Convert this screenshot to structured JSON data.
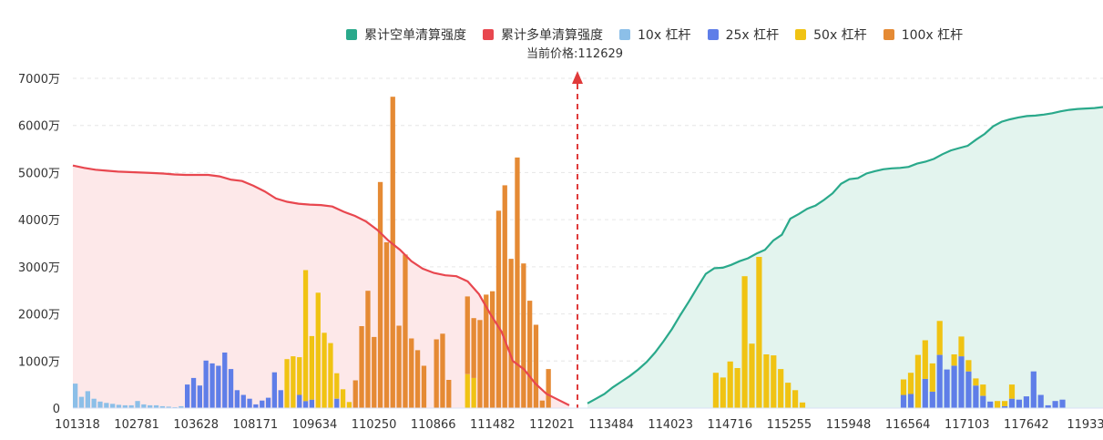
{
  "legend": {
    "items": [
      {
        "label": "累计空单清算强度",
        "color": "#2aa98b"
      },
      {
        "label": "累计多单清算强度",
        "color": "#e8474f"
      },
      {
        "label": "10x 杠杆",
        "color": "#8cbfe8"
      },
      {
        "label": "25x 杠杆",
        "color": "#5f7ee8"
      },
      {
        "label": "50x 杠杆",
        "color": "#f0c313"
      },
      {
        "label": "100x 杠杆",
        "color": "#e58a34"
      }
    ]
  },
  "current_price": {
    "label": "当前价格:112629",
    "value": 112629,
    "color": "#e8474f"
  },
  "chart_data": {
    "type": "bar",
    "stacked": true,
    "ylim": [
      0,
      7000
    ],
    "y_unit": "万",
    "ytick_labels": [
      "0",
      "1000万",
      "2000万",
      "3000万",
      "4000万",
      "5000万",
      "6000万",
      "7000万"
    ],
    "ytick_values": [
      0,
      1000,
      2000,
      3000,
      4000,
      5000,
      6000,
      7000
    ],
    "xtick_labels": [
      "101318",
      "102781",
      "103628",
      "108171",
      "109634",
      "110250",
      "110866",
      "111482",
      "112021",
      "113484",
      "114023",
      "114716",
      "115255",
      "115948",
      "116564",
      "117103",
      "117642",
      "11933"
    ],
    "gap_after_index": 78,
    "series": [
      {
        "name": "10x 杠杆",
        "color": "#8cbfe8",
        "values": [
          520,
          240,
          360,
          200,
          140,
          110,
          90,
          70,
          60,
          60,
          150,
          80,
          60,
          60,
          40,
          30,
          20,
          40,
          0,
          0,
          0,
          0,
          0,
          0,
          0,
          0,
          0,
          0,
          0,
          0,
          0,
          0,
          0,
          0,
          0,
          0,
          0,
          0,
          0,
          0,
          0,
          0,
          0,
          0,
          0,
          0,
          0,
          0,
          0,
          0,
          0,
          0,
          0,
          0,
          0,
          0,
          0,
          0,
          0,
          0,
          0,
          0,
          0,
          0,
          0,
          0,
          0,
          0,
          0,
          0,
          0,
          0,
          0,
          0,
          0,
          0,
          0,
          0,
          0,
          0,
          0,
          0,
          0,
          0,
          0,
          0,
          0,
          0,
          0,
          0,
          0,
          0,
          0,
          0,
          0,
          0,
          0,
          0,
          0,
          0,
          0,
          0,
          0,
          0,
          0,
          0,
          0,
          0,
          0,
          0,
          0,
          0,
          0,
          0,
          0,
          0,
          0,
          0,
          0,
          0,
          0,
          0,
          0,
          0,
          0,
          0,
          0,
          0,
          0,
          0,
          0,
          0,
          0,
          0,
          0,
          0,
          0,
          0,
          0,
          0,
          0,
          0,
          0,
          0,
          0,
          0,
          0,
          0,
          0,
          0,
          0,
          0,
          0,
          0,
          0,
          0,
          0,
          0,
          0
        ]
      },
      {
        "name": "25x 杠杆",
        "color": "#5f7ee8",
        "values": [
          0,
          0,
          0,
          0,
          0,
          0,
          0,
          0,
          0,
          0,
          0,
          0,
          0,
          0,
          0,
          0,
          0,
          0,
          500,
          640,
          480,
          1010,
          950,
          900,
          1180,
          830,
          380,
          280,
          200,
          80,
          160,
          220,
          760,
          380,
          0,
          0,
          280,
          150,
          180,
          0,
          0,
          0,
          200,
          0,
          0,
          0,
          0,
          0,
          0,
          0,
          0,
          0,
          0,
          0,
          0,
          0,
          0,
          0,
          0,
          0,
          0,
          0,
          0,
          0,
          0,
          0,
          0,
          0,
          0,
          0,
          0,
          0,
          0,
          0,
          0,
          0,
          0,
          0,
          0,
          0,
          0,
          0,
          0,
          0,
          0,
          0,
          0,
          0,
          0,
          0,
          0,
          0,
          0,
          0,
          0,
          0,
          0,
          0,
          0,
          0,
          0,
          0,
          0,
          0,
          0,
          0,
          0,
          0,
          0,
          0,
          0,
          0,
          0,
          0,
          0,
          0,
          0,
          0,
          0,
          0,
          0,
          0,
          0,
          280,
          300,
          0,
          620,
          350,
          1130,
          820,
          900,
          1100,
          780,
          480,
          260,
          140,
          0,
          40,
          200,
          180,
          250,
          780,
          280,
          60,
          150,
          180
        ]
      },
      {
        "name": "50x 杠杆",
        "color": "#f0c313",
        "values": [
          0,
          0,
          0,
          0,
          0,
          0,
          0,
          0,
          0,
          0,
          0,
          0,
          0,
          0,
          0,
          0,
          0,
          0,
          0,
          0,
          0,
          0,
          0,
          0,
          0,
          0,
          0,
          0,
          0,
          0,
          0,
          0,
          0,
          0,
          1040,
          1100,
          800,
          2780,
          1350,
          2450,
          1600,
          1380,
          540,
          400,
          130,
          0,
          0,
          0,
          0,
          0,
          0,
          0,
          0,
          0,
          0,
          0,
          0,
          0,
          0,
          0,
          0,
          0,
          0,
          720,
          640,
          0,
          0,
          0,
          0,
          0,
          0,
          0,
          0,
          0,
          0,
          0,
          0,
          0,
          0,
          0,
          0,
          0,
          0,
          0,
          0,
          0,
          0,
          0,
          0,
          0,
          0,
          0,
          0,
          0,
          0,
          0,
          0,
          750,
          650,
          990,
          850,
          2800,
          1370,
          3210,
          1140,
          1120,
          830,
          540,
          380,
          120,
          0,
          0,
          0,
          0,
          0,
          0,
          0,
          0,
          0,
          0,
          0,
          0,
          0,
          330,
          450,
          1130,
          820,
          600,
          720,
          0,
          240,
          420,
          240,
          150,
          240,
          0,
          150,
          110,
          300,
          0,
          0,
          0,
          0,
          0,
          0,
          0,
          0,
          0
        ]
      },
      {
        "name": "100x 杠杆",
        "color": "#e58a34",
        "values": [
          0,
          0,
          0,
          0,
          0,
          0,
          0,
          0,
          0,
          0,
          0,
          0,
          0,
          0,
          0,
          0,
          0,
          0,
          0,
          0,
          0,
          0,
          0,
          0,
          0,
          0,
          0,
          0,
          0,
          0,
          0,
          0,
          0,
          0,
          0,
          0,
          0,
          0,
          0,
          0,
          0,
          0,
          0,
          0,
          0,
          0,
          0,
          0,
          0,
          0,
          0,
          0,
          0,
          0,
          0,
          0,
          0,
          0,
          0,
          0,
          0,
          0,
          0,
          0,
          0,
          0,
          0,
          0,
          0,
          0,
          0,
          0,
          0,
          0,
          0,
          0,
          0,
          0,
          0,
          0,
          0,
          0,
          0,
          0,
          0,
          0,
          0,
          0,
          0,
          0,
          0,
          0,
          0,
          0,
          0,
          0,
          0,
          0,
          0,
          0,
          0,
          0,
          0,
          0,
          0,
          0,
          0,
          0,
          0,
          0,
          0,
          0,
          0,
          0,
          0,
          0,
          0,
          0,
          0,
          0,
          0,
          0,
          0,
          0,
          0,
          0,
          0,
          0,
          0,
          0,
          0,
          0,
          0,
          0,
          0,
          0,
          0,
          0,
          0,
          0,
          0,
          0,
          0,
          0,
          0,
          0,
          0,
          0,
          0,
          0,
          0,
          0,
          0,
          0,
          0,
          0,
          0,
          0,
          0
        ]
      }
    ],
    "orange_bars": [
      0,
      0,
      0,
      0,
      0,
      0,
      0,
      0,
      0,
      0,
      0,
      0,
      0,
      0,
      0,
      0,
      0,
      0,
      0,
      0,
      0,
      0,
      0,
      0,
      0,
      0,
      0,
      0,
      0,
      0,
      0,
      0,
      0,
      0,
      0,
      0,
      0,
      0,
      0,
      0,
      0,
      0,
      0,
      0,
      0,
      590,
      1740,
      2490,
      1510,
      4800,
      3520,
      6610,
      1750,
      3260,
      1480,
      1230,
      900,
      0,
      1460,
      1580,
      600,
      0,
      0,
      1650,
      1270,
      1870,
      2410,
      2480,
      4190,
      4730,
      3170,
      5320,
      3070,
      2280,
      1770,
      160,
      830,
      0,
      0,
      0,
      0,
      0,
      0,
      0,
      0,
      0,
      0,
      0,
      0,
      0,
      0,
      0,
      0,
      0,
      0,
      0,
      0,
      0,
      0,
      0,
      0,
      0,
      0,
      0,
      0,
      0,
      0,
      0,
      0,
      0,
      0,
      0,
      0,
      0,
      0,
      0,
      0,
      0,
      0,
      0,
      0,
      0,
      0,
      0,
      0,
      0,
      0,
      0,
      0,
      0,
      0,
      0,
      0,
      0,
      0,
      0,
      0,
      0,
      0,
      0,
      0,
      0,
      0,
      0,
      0,
      0,
      0,
      0,
      0,
      0,
      0
    ],
    "short_cumulative": [
      100,
      200,
      300,
      440,
      560,
      680,
      820,
      980,
      1180,
      1420,
      1680,
      1980,
      2260,
      2560,
      2850,
      2970,
      2980,
      3040,
      3120,
      3180,
      3280,
      3360,
      3560,
      3680,
      4020,
      4120,
      4230,
      4300,
      4420,
      4560,
      4760,
      4860,
      4880,
      4980,
      5030,
      5070,
      5090,
      5100,
      5120,
      5190,
      5230,
      5290,
      5390,
      5470,
      5520,
      5570,
      5700,
      5820,
      5980,
      6080,
      6130,
      6170,
      6200,
      6210,
      6230,
      6260,
      6300,
      6330,
      6350,
      6360,
      6370,
      6390
    ],
    "long_cumulative": [
      5150,
      5100,
      5060,
      5040,
      5020,
      5010,
      5000,
      4990,
      4980,
      4960,
      4950,
      4950,
      4950,
      4920,
      4850,
      4820,
      4720,
      4600,
      4450,
      4380,
      4340,
      4320,
      4310,
      4280,
      4170,
      4080,
      3960,
      3780,
      3550,
      3360,
      3120,
      2960,
      2870,
      2820,
      2800,
      2690,
      2420,
      2000,
      1620,
      1000,
      820,
      520,
      300,
      180,
      60
    ]
  }
}
